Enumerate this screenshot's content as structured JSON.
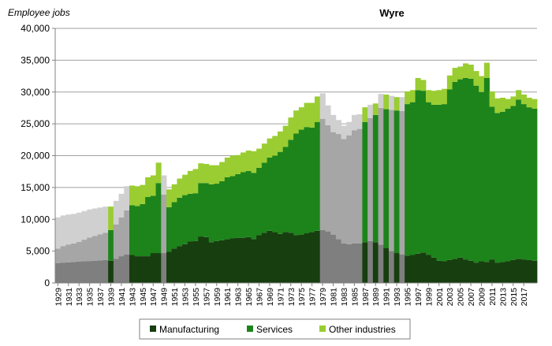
{
  "chart_data": {
    "type": "bar",
    "stacked": true,
    "title": "Wyre",
    "ylabel": "Employee jobs",
    "ylim": [
      0,
      40000
    ],
    "y_ticks": [
      "0",
      "5,000",
      "10,000",
      "15,000",
      "20,000",
      "25,000",
      "30,000",
      "35,000",
      "40,000"
    ],
    "y_tick_values": [
      0,
      5000,
      10000,
      15000,
      20000,
      25000,
      30000,
      35000,
      40000
    ],
    "x_start": 1929,
    "x_end": 2019,
    "x_tick_labels": [
      "1929",
      "1931",
      "1933",
      "1935",
      "1937",
      "1939",
      "1941",
      "1943",
      "1945",
      "1947",
      "1949",
      "1951",
      "1953",
      "1955",
      "1957",
      "1959",
      "1961",
      "1963",
      "1965",
      "1967",
      "1969",
      "1971",
      "1973",
      "1975",
      "1977",
      "1979",
      "1981",
      "1983",
      "1985",
      "1987",
      "1989",
      "1991",
      "1993",
      "1995",
      "1997",
      "1999",
      "2001",
      "2003",
      "2005",
      "2007",
      "2009",
      "2011",
      "2013",
      "2015",
      "2017"
    ],
    "grid": "horizontal",
    "legend_position": "bottom",
    "colors": {
      "manufacturing": "#173e0f",
      "services": "#1d841b",
      "other": "#9acd32",
      "est_manufacturing": "#7f7f7f",
      "est_services": "#a6a6a6",
      "est_other": "#d0d0d0"
    },
    "estimated_years": [
      1929,
      1930,
      1931,
      1932,
      1933,
      1934,
      1935,
      1936,
      1937,
      1938,
      1940,
      1941,
      1942,
      1949,
      1979,
      1980,
      1981,
      1982,
      1983,
      1984,
      1985,
      1986,
      1988,
      1990,
      1992,
      1994
    ],
    "series": [
      {
        "name": "Manufacturing",
        "key": "manufacturing",
        "values": [
          3100,
          3200,
          3250,
          3300,
          3350,
          3400,
          3450,
          3500,
          3550,
          3600,
          3500,
          3800,
          4200,
          4500,
          4400,
          4200,
          4200,
          4200,
          4700,
          4700,
          4700,
          4900,
          5400,
          5800,
          6100,
          6500,
          6600,
          7300,
          7200,
          6400,
          6600,
          6700,
          6900,
          7000,
          7100,
          7100,
          7200,
          6900,
          7500,
          7900,
          8200,
          8000,
          7700,
          8000,
          7900,
          7500,
          7600,
          7800,
          8000,
          8200,
          8300,
          8100,
          7600,
          6900,
          6200,
          6100,
          6200,
          6200,
          6400,
          6600,
          6400,
          6000,
          5500,
          5000,
          4700,
          4500,
          4300,
          4400,
          4600,
          4800,
          4400,
          4000,
          3500,
          3400,
          3600,
          3800,
          4000,
          3700,
          3500,
          3200,
          3400,
          3300,
          3700,
          3200,
          3300,
          3400,
          3600,
          3800,
          3700,
          3600,
          3500
        ]
      },
      {
        "name": "Services",
        "key": "services",
        "values": [
          2300,
          2600,
          2800,
          2900,
          3100,
          3400,
          3700,
          3900,
          4100,
          4300,
          4800,
          5400,
          6100,
          6900,
          7800,
          7900,
          8200,
          9300,
          9000,
          11000,
          9200,
          7000,
          7300,
          7600,
          7700,
          7500,
          7500,
          8400,
          8500,
          9100,
          9000,
          9300,
          9700,
          9800,
          10000,
          10300,
          10400,
          10400,
          10600,
          11000,
          11500,
          12000,
          12900,
          13400,
          14600,
          16000,
          16500,
          16700,
          16400,
          17100,
          17500,
          16700,
          16100,
          16500,
          16400,
          17100,
          17800,
          18000,
          18900,
          19300,
          20000,
          21500,
          21800,
          22200,
          22400,
          22500,
          23800,
          24000,
          25700,
          25400,
          24000,
          24000,
          24500,
          24700,
          26800,
          27800,
          28000,
          28500,
          28600,
          27800,
          26600,
          28900,
          24000,
          23500,
          23600,
          24000,
          24200,
          25000,
          24400,
          24000,
          23900
        ]
      },
      {
        "name": "Other industries",
        "key": "other",
        "values": [
          4900,
          4800,
          4700,
          4650,
          4600,
          4500,
          4400,
          4300,
          4200,
          4100,
          3700,
          3700,
          3700,
          3800,
          3100,
          3100,
          3000,
          3100,
          3200,
          3200,
          3000,
          2800,
          2800,
          3000,
          3200,
          3600,
          3800,
          3100,
          3000,
          3000,
          2900,
          3000,
          3100,
          3200,
          3000,
          3100,
          3200,
          3400,
          3000,
          3000,
          3000,
          3100,
          3200,
          3300,
          3500,
          3600,
          3500,
          3800,
          3900,
          4000,
          4000,
          3100,
          2700,
          2200,
          2100,
          2100,
          2400,
          2300,
          2300,
          2100,
          1800,
          2200,
          2300,
          2200,
          2100,
          2200,
          2000,
          1900,
          1900,
          1700,
          1900,
          2200,
          2300,
          2400,
          2200,
          2200,
          2000,
          2300,
          2200,
          2300,
          2500,
          2400,
          2400,
          2300,
          2200,
          1500,
          1500,
          1500,
          1500,
          1500,
          1500
        ]
      }
    ]
  }
}
